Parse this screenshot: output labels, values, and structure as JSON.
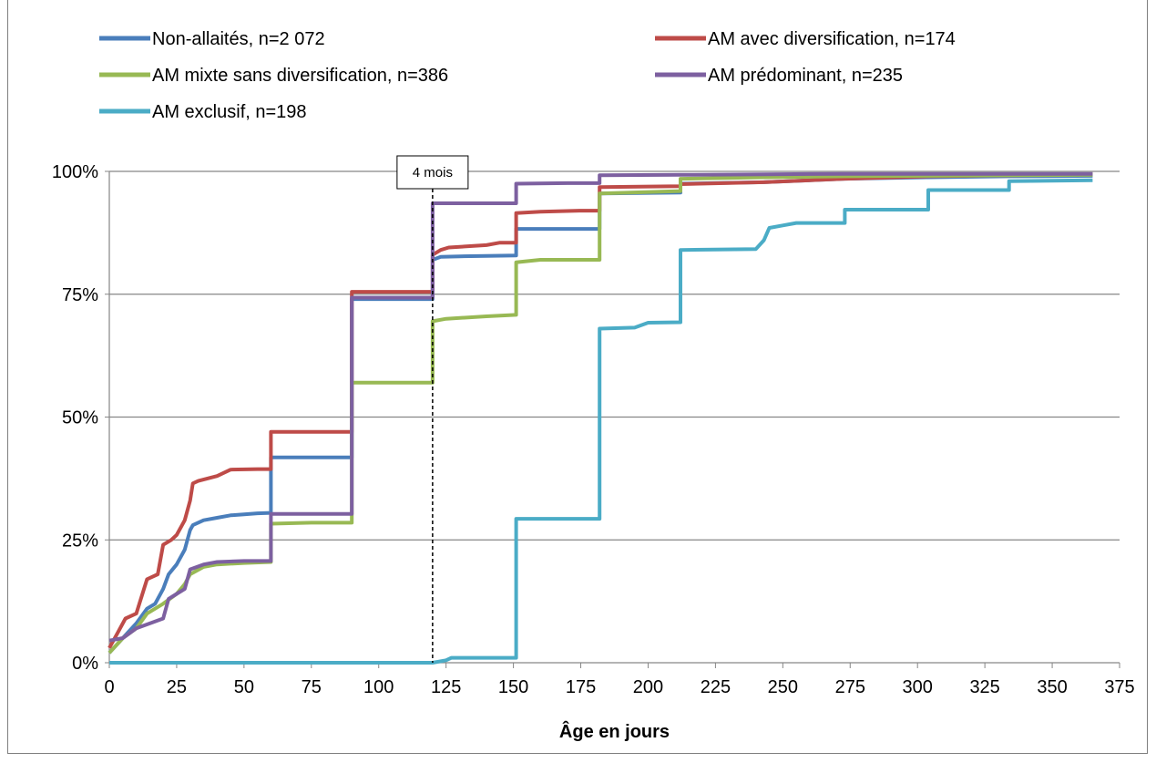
{
  "chart_data": {
    "type": "line",
    "title": "",
    "xlabel": "Âge en jours",
    "ylabel": "",
    "xlim": [
      0,
      375
    ],
    "ylim": [
      0,
      100
    ],
    "x_ticks": [
      0,
      25,
      50,
      75,
      100,
      125,
      150,
      175,
      200,
      225,
      250,
      275,
      300,
      325,
      350,
      375
    ],
    "y_ticks": [
      0,
      25,
      50,
      75,
      100
    ],
    "y_tick_labels": [
      "0%",
      "25%",
      "50%",
      "75%",
      "100%"
    ],
    "grid": "horizontal",
    "legend_position": "top",
    "annotation": {
      "text": "4 mois",
      "x": 120
    },
    "series": [
      {
        "name": "Non-allaités, n=2 072",
        "color": "#4a7ebb",
        "points": [
          [
            0,
            2
          ],
          [
            5,
            5
          ],
          [
            10,
            8
          ],
          [
            14,
            11
          ],
          [
            17,
            12
          ],
          [
            20,
            15
          ],
          [
            22,
            18
          ],
          [
            25,
            20
          ],
          [
            28,
            23
          ],
          [
            30,
            27
          ],
          [
            31,
            28
          ],
          [
            35,
            29
          ],
          [
            40,
            29.5
          ],
          [
            45,
            30
          ],
          [
            50,
            30.2
          ],
          [
            55,
            30.4
          ],
          [
            60,
            30.5
          ],
          [
            60,
            41.8
          ],
          [
            90,
            41.8
          ],
          [
            90,
            74
          ],
          [
            120,
            74
          ],
          [
            120,
            82
          ],
          [
            123,
            82.6
          ],
          [
            130,
            82.7
          ],
          [
            140,
            82.8
          ],
          [
            151,
            82.9
          ],
          [
            151,
            88.3
          ],
          [
            182,
            88.3
          ],
          [
            182,
            95.5
          ],
          [
            212,
            95.7
          ],
          [
            212,
            97.5
          ],
          [
            243,
            97.8
          ],
          [
            273,
            98.5
          ],
          [
            304,
            98.8
          ],
          [
            334,
            99
          ],
          [
            365,
            99.1
          ]
        ]
      },
      {
        "name": "AM avec diversification, n=174",
        "color": "#be4b48",
        "points": [
          [
            0,
            3
          ],
          [
            3,
            6
          ],
          [
            6,
            9
          ],
          [
            10,
            10
          ],
          [
            14,
            17
          ],
          [
            18,
            18
          ],
          [
            20,
            24
          ],
          [
            23,
            25
          ],
          [
            25,
            26
          ],
          [
            28,
            29
          ],
          [
            30,
            33
          ],
          [
            31,
            36.5
          ],
          [
            33,
            37
          ],
          [
            40,
            38
          ],
          [
            45,
            39.3
          ],
          [
            55,
            39.4
          ],
          [
            60,
            39.4
          ],
          [
            60,
            47
          ],
          [
            90,
            47
          ],
          [
            90,
            75.5
          ],
          [
            120,
            75.5
          ],
          [
            120,
            83
          ],
          [
            123,
            84
          ],
          [
            126,
            84.5
          ],
          [
            140,
            85
          ],
          [
            145,
            85.5
          ],
          [
            151,
            85.5
          ],
          [
            151,
            91.5
          ],
          [
            160,
            91.8
          ],
          [
            175,
            92
          ],
          [
            182,
            92
          ],
          [
            182,
            96.8
          ],
          [
            212,
            97
          ],
          [
            212,
            97.4
          ],
          [
            243,
            97.8
          ],
          [
            273,
            98.5
          ],
          [
            304,
            99
          ],
          [
            334,
            99.2
          ],
          [
            365,
            99.4
          ]
        ]
      },
      {
        "name": "AM mixte sans diversification, n=386",
        "color": "#98b954",
        "points": [
          [
            0,
            2
          ],
          [
            5,
            5
          ],
          [
            10,
            7
          ],
          [
            14,
            10
          ],
          [
            20,
            12
          ],
          [
            25,
            14
          ],
          [
            28,
            16
          ],
          [
            30,
            18
          ],
          [
            35,
            19.5
          ],
          [
            40,
            20
          ],
          [
            50,
            20.3
          ],
          [
            60,
            20.5
          ],
          [
            60,
            28.3
          ],
          [
            75,
            28.5
          ],
          [
            90,
            28.5
          ],
          [
            90,
            57
          ],
          [
            120,
            57
          ],
          [
            120,
            69.5
          ],
          [
            125,
            70
          ],
          [
            140,
            70.5
          ],
          [
            151,
            70.8
          ],
          [
            151,
            81.5
          ],
          [
            160,
            82
          ],
          [
            182,
            82
          ],
          [
            182,
            95.5
          ],
          [
            212,
            96
          ],
          [
            212,
            98.5
          ],
          [
            243,
            98.8
          ],
          [
            273,
            99
          ],
          [
            304,
            99.1
          ],
          [
            334,
            99.2
          ],
          [
            365,
            99.3
          ]
        ]
      },
      {
        "name": "AM prédominant, n=235",
        "color": "#7d60a0",
        "points": [
          [
            0,
            4.5
          ],
          [
            5,
            5
          ],
          [
            10,
            7
          ],
          [
            15,
            8
          ],
          [
            20,
            9
          ],
          [
            22,
            13
          ],
          [
            25,
            14
          ],
          [
            28,
            15
          ],
          [
            30,
            19
          ],
          [
            35,
            20
          ],
          [
            40,
            20.5
          ],
          [
            50,
            20.7
          ],
          [
            60,
            20.7
          ],
          [
            60,
            30.3
          ],
          [
            90,
            30.3
          ],
          [
            90,
            74.3
          ],
          [
            120,
            74.3
          ],
          [
            120,
            93.5
          ],
          [
            140,
            93.5
          ],
          [
            151,
            93.5
          ],
          [
            151,
            97.5
          ],
          [
            170,
            97.6
          ],
          [
            182,
            97.6
          ],
          [
            182,
            99.2
          ],
          [
            212,
            99.3
          ],
          [
            243,
            99.4
          ],
          [
            273,
            99.5
          ],
          [
            365,
            99.5
          ]
        ]
      },
      {
        "name": "AM exclusif, n=198",
        "color": "#4bacc6",
        "points": [
          [
            0,
            0
          ],
          [
            120,
            0
          ],
          [
            125,
            0.5
          ],
          [
            127,
            1
          ],
          [
            140,
            1
          ],
          [
            151,
            1
          ],
          [
            151,
            29.3
          ],
          [
            182,
            29.3
          ],
          [
            182,
            68
          ],
          [
            195,
            68.2
          ],
          [
            200,
            69.2
          ],
          [
            212,
            69.3
          ],
          [
            212,
            84
          ],
          [
            240,
            84.2
          ],
          [
            243,
            86
          ],
          [
            245,
            88.5
          ],
          [
            250,
            89
          ],
          [
            255,
            89.5
          ],
          [
            273,
            89.5
          ],
          [
            273,
            92.2
          ],
          [
            304,
            92.2
          ],
          [
            304,
            96.2
          ],
          [
            334,
            96.2
          ],
          [
            334,
            98
          ],
          [
            365,
            98.2
          ]
        ]
      }
    ]
  }
}
